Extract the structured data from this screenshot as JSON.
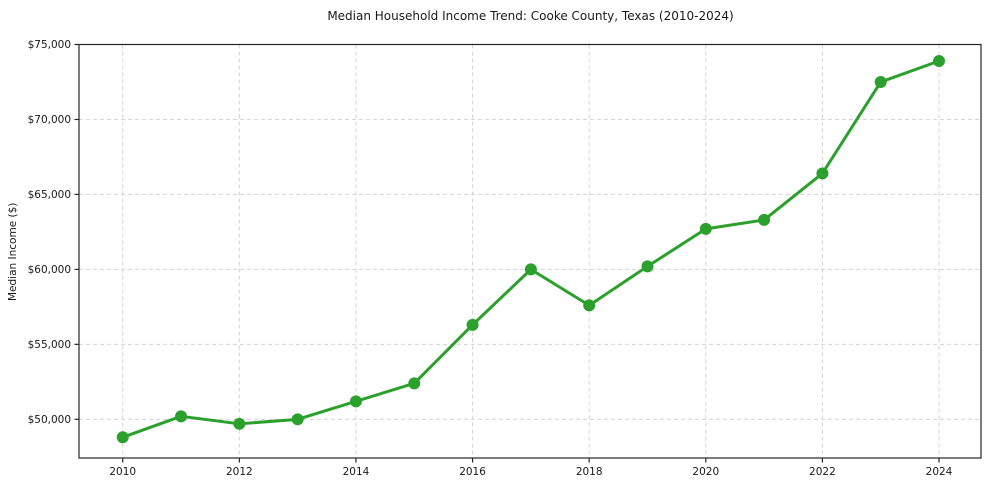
{
  "chart_data": {
    "type": "line",
    "title": "Median Household Income Trend: Cooke County, Texas (2010-2024)",
    "xlabel": "",
    "ylabel": "Median Income ($)",
    "series": [
      {
        "name": "Median Household Income",
        "x": [
          2010,
          2011,
          2012,
          2013,
          2014,
          2015,
          2016,
          2017,
          2018,
          2019,
          2020,
          2021,
          2022,
          2023,
          2024
        ],
        "values": [
          48800,
          50200,
          49700,
          50000,
          51200,
          52400,
          56300,
          60000,
          57600,
          60200,
          62700,
          63300,
          66400,
          72500,
          73900
        ]
      }
    ],
    "x_tick_values": [
      2010,
      2012,
      2014,
      2016,
      2018,
      2020,
      2022,
      2024
    ],
    "x_tick_labels": [
      "2010",
      "2012",
      "2014",
      "2016",
      "2018",
      "2020",
      "2022",
      "2024"
    ],
    "y_tick_values": [
      50000,
      55000,
      60000,
      65000,
      70000,
      75000
    ],
    "y_tick_labels": [
      "$50,000",
      "$55,000",
      "$60,000",
      "$65,000",
      "$70,000",
      "$75,000"
    ],
    "xlim": [
      2009.25,
      2024.72
    ],
    "ylim": [
      47420,
      75000
    ],
    "grid": "dashed",
    "legend": "none",
    "colors": {
      "line": "#2ca02c",
      "marker": "#2ca02c",
      "grid": "#d4d4d4",
      "spine": "#262626",
      "text": "#1a1a1a",
      "background": "#ffffff"
    }
  }
}
